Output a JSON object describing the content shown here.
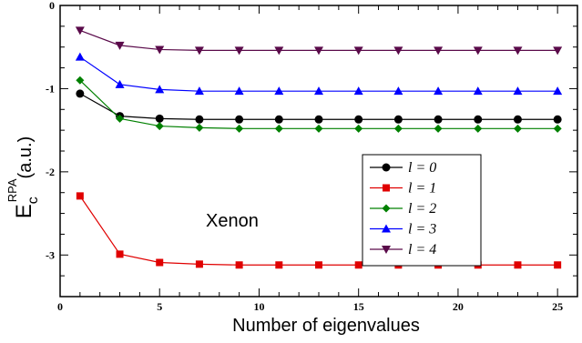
{
  "chart_data": {
    "type": "line",
    "title": "",
    "xlabel": "Number of eigenvalues",
    "ylabel": {
      "main": "E",
      "sub": "c",
      "sup": "RPA",
      "unit": "(a.u.)"
    },
    "annotation": "Xenon",
    "xlim": [
      0,
      26
    ],
    "ylim": [
      -3.5,
      0
    ],
    "xticks": [
      0,
      5,
      10,
      15,
      20,
      25
    ],
    "yticks": [
      0,
      -1,
      -2,
      -3
    ],
    "grid": false,
    "legend_position": "center-right",
    "x": [
      1,
      3,
      5,
      7,
      9,
      11,
      13,
      15,
      17,
      19,
      21,
      23,
      25
    ],
    "series": [
      {
        "name": "l = 0",
        "color": "#000000",
        "marker": "circle",
        "values": [
          -1.06,
          -1.33,
          -1.36,
          -1.37,
          -1.37,
          -1.37,
          -1.37,
          -1.37,
          -1.37,
          -1.37,
          -1.37,
          -1.37,
          -1.37
        ]
      },
      {
        "name": "l = 1",
        "color": "#e00000",
        "marker": "square",
        "values": [
          -2.29,
          -2.99,
          -3.09,
          -3.11,
          -3.12,
          -3.12,
          -3.12,
          -3.12,
          -3.12,
          -3.12,
          -3.12,
          -3.12,
          -3.12
        ]
      },
      {
        "name": "l = 2",
        "color": "#008000",
        "marker": "diamond",
        "values": [
          -0.9,
          -1.36,
          -1.45,
          -1.47,
          -1.48,
          -1.48,
          -1.48,
          -1.48,
          -1.48,
          -1.48,
          -1.48,
          -1.48,
          -1.48
        ]
      },
      {
        "name": "l = 3",
        "color": "#0000ff",
        "marker": "triangle-up",
        "values": [
          -0.62,
          -0.95,
          -1.01,
          -1.03,
          -1.03,
          -1.03,
          -1.03,
          -1.03,
          -1.03,
          -1.03,
          -1.03,
          -1.03,
          -1.03
        ]
      },
      {
        "name": "l = 4",
        "color": "#5a0a4a",
        "marker": "triangle-down",
        "values": [
          -0.3,
          -0.48,
          -0.53,
          -0.54,
          -0.54,
          -0.54,
          -0.54,
          -0.54,
          -0.54,
          -0.54,
          -0.54,
          -0.54,
          -0.54
        ]
      }
    ]
  }
}
